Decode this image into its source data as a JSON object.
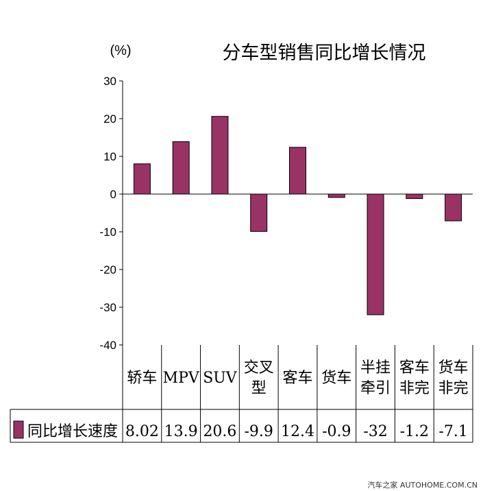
{
  "chart_data": {
    "type": "bar",
    "title": "分车型销售同比增长情况",
    "ylabel": "(%)",
    "ylim": [
      -40,
      30
    ],
    "yticks": [
      30,
      20,
      10,
      0,
      -10,
      -20,
      -30,
      -40
    ],
    "categories": [
      [
        "轿车"
      ],
      [
        "MPV"
      ],
      [
        "SUV"
      ],
      [
        "交叉",
        "型"
      ],
      [
        "客车"
      ],
      [
        "货车"
      ],
      [
        "半挂",
        "牵引"
      ],
      [
        "客车",
        "非完"
      ],
      [
        "货车",
        "非完"
      ]
    ],
    "series": [
      {
        "name": "同比增长速度",
        "values": [
          8.02,
          13.9,
          20.6,
          -9.9,
          12.4,
          -0.9,
          -32,
          -1.2,
          -7.1
        ],
        "labels": [
          "8.02",
          "13.9",
          "20.6",
          "-9.9",
          "12.4",
          "-0.9",
          "-32",
          "-1.2",
          "-7.1"
        ],
        "color": "#993366"
      }
    ],
    "grid": false,
    "legend": "bottom-left (data table)"
  },
  "watermark": "汽车之家 AUTOHOME.COM.CN"
}
